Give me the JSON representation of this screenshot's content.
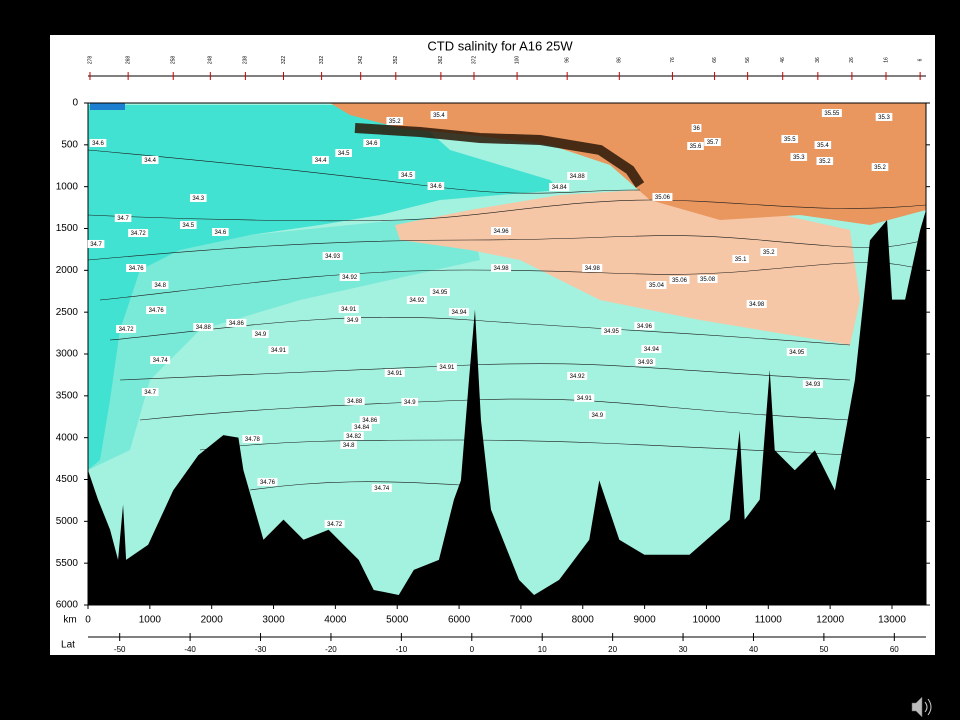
{
  "chart_data": {
    "type": "contour",
    "title": "CTD salinity for A16 25W",
    "x_label": "km",
    "lat_label": "Lat",
    "xlim": [
      0,
      13550
    ],
    "xticks": [
      0,
      1000,
      2000,
      3000,
      4000,
      5000,
      6000,
      7000,
      8000,
      9000,
      10000,
      11000,
      12000,
      13000
    ],
    "ylim": [
      6000,
      0
    ],
    "yticks": [
      0,
      500,
      1000,
      1500,
      2000,
      2500,
      3000,
      3500,
      4000,
      4500,
      5000,
      5500,
      6000
    ],
    "latlim": [
      -54.5,
      64.5
    ],
    "latticks": [
      -50,
      -40,
      -30,
      -20,
      -10,
      0,
      10,
      20,
      30,
      40,
      50,
      60
    ],
    "stations": {
      "labels": [
        "278",
        "268",
        "258",
        "248",
        "238",
        "322",
        "332",
        "342",
        "352",
        "362",
        "372",
        "100",
        "96",
        "86",
        "76",
        "66",
        "56",
        "46",
        "36",
        "26",
        "16",
        "6"
      ],
      "x": [
        32,
        649,
        1378,
        1978,
        2545,
        3161,
        3777,
        4409,
        4977,
        5706,
        6241,
        6938,
        7748,
        8591,
        9450,
        10131,
        10666,
        11233,
        11801,
        12352,
        12903,
        13455
      ]
    },
    "bathymetry": {
      "color": "#000000",
      "x": [
        0,
        162,
        357,
        486,
        567,
        616,
        973,
        1378,
        1783,
        2188,
        2432,
        2513,
        2837,
        3161,
        3485,
        3890,
        4377,
        4620,
        5025,
        5268,
        5674,
        5917,
        6030,
        6160,
        6257,
        6354,
        6516,
        6970,
        7213,
        7618,
        8105,
        8267,
        8591,
        8997,
        9726,
        10375,
        10537,
        10618,
        10861,
        11023,
        11104,
        11428,
        11753,
        12077,
        12401,
        12644,
        12920,
        13001,
        13212,
        13455,
        13550
      ],
      "depth": [
        4390,
        4740,
        5100,
        5460,
        4800,
        5460,
        5280,
        4630,
        4210,
        3970,
        4000,
        4390,
        5220,
        4980,
        5220,
        5100,
        5460,
        5820,
        5880,
        5580,
        5460,
        4740,
        4510,
        3310,
        2470,
        3790,
        4860,
        5700,
        5880,
        5700,
        5220,
        4510,
        5220,
        5400,
        5400,
        4980,
        3910,
        4980,
        4740,
        3190,
        4150,
        4390,
        4150,
        4630,
        3310,
        1640,
        1400,
        2350,
        2350,
        1520,
        1280
      ]
    },
    "contour_labels": {
      "x": [
        162,
        1005,
        1783,
        1621,
        2140,
        567,
        130,
        811,
        778,
        1167,
        1102,
        616,
        1864,
        2399,
        2788,
        3080,
        1167,
        1005,
        3761,
        4134,
        4587,
        4960,
        5674,
        5155,
        5625,
        7619,
        7910,
        3955,
        4231,
        4215,
        4280,
        5317,
        5690,
        5998,
        4960,
        5803,
        4312,
        5203,
        4555,
        4425,
        4296,
        4215,
        2658,
        2902,
        4750,
        3988,
        6679,
        6679,
        8154,
        8462,
        8997,
        9110,
        9013,
        7910,
        8024,
        8235,
        9191,
        9564,
        10018,
        12871,
        12028,
        11347,
        11882,
        11493,
        11914,
        12806,
        10099,
        9823,
        9839,
        10553,
        11007,
        10812,
        11460,
        11720,
        9288
      ],
      "depth": [
        478,
        681,
        1135,
        1458,
        1542,
        1374,
        1685,
        1554,
        1972,
        2175,
        2474,
        2701,
        2677,
        2629,
        2760,
        2952,
        3071,
        3454,
        681,
        598,
        478,
        215,
        143,
        860,
        992,
        1004,
        872,
        1828,
        2079,
        2462,
        2593,
        2354,
        2259,
        2498,
        3227,
        3155,
        3561,
        3573,
        3788,
        3872,
        3979,
        4087,
        4015,
        4529,
        4601,
        5031,
        1530,
        1972,
        1972,
        2725,
        2665,
        2940,
        3095,
        3262,
        3525,
        3728,
        2175,
        2115,
        2103,
        167,
        120,
        430,
        502,
        645,
        693,
        765,
        466,
        514,
        299,
        1864,
        1781,
        2402,
        2976,
        3358,
        1123
      ],
      "values": [
        34.6,
        34.4,
        34.3,
        34.5,
        34.6,
        34.7,
        34.7,
        34.72,
        34.76,
        34.8,
        34.76,
        34.72,
        34.88,
        34.86,
        34.9,
        34.91,
        34.74,
        34.7,
        34.4,
        34.5,
        34.6,
        35.2,
        35.4,
        34.5,
        34.6,
        34.84,
        34.88,
        34.93,
        34.92,
        34.91,
        34.9,
        34.92,
        34.95,
        34.94,
        34.91,
        34.91,
        34.88,
        34.9,
        34.86,
        34.84,
        34.82,
        34.8,
        34.78,
        34.76,
        34.74,
        34.72,
        34.96,
        34.98,
        34.98,
        34.95,
        34.96,
        34.94,
        34.93,
        34.92,
        34.91,
        34.9,
        35.04,
        35.06,
        35.08,
        35.3,
        35.55,
        35.5,
        35.4,
        35.3,
        35.2,
        35.2,
        35.7,
        35.6,
        36,
        35.1,
        35.2,
        34.98,
        34.95,
        34.93,
        35.06
      ]
    }
  }
}
